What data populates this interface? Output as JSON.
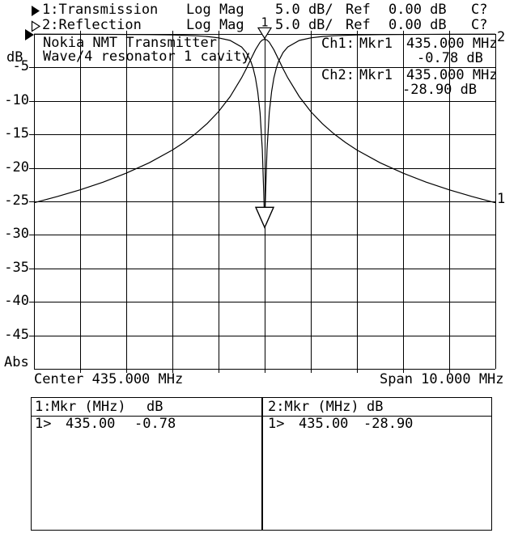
{
  "header": {
    "ch1": {
      "title": "1:Transmission",
      "format": "Log Mag",
      "scale": "5.0 dB/",
      "ref_label": "Ref",
      "ref_value": "0.00 dB",
      "cal_status": "C?",
      "marker_icon": "filled-right-triangle"
    },
    "ch2": {
      "title": "2:Reflection",
      "format": "Log Mag",
      "scale": "5.0 dB/",
      "ref_label": "Ref",
      "ref_value": "0.00 dB",
      "cal_status": "C?",
      "marker_icon": "hollow-right-triangle"
    }
  },
  "plot": {
    "annotation_line1": "Nokia NMT Transmitter",
    "annotation_line2": "Wave/4 resonator 1 cavity",
    "y_unit": "dB",
    "y_mode": "Abs",
    "y_tick_labels": [
      "-5",
      "-10",
      "-15",
      "-20",
      "-25",
      "-30",
      "-35",
      "-40",
      "-45"
    ],
    "center_label": "Center 435.000 MHz",
    "span_label": "Span 10.000 MHz",
    "trace1_label": "1",
    "trace2_label": "2"
  },
  "marker_readout": {
    "ch1": {
      "channel": "Ch1:",
      "marker": "Mkr1",
      "freq": "435.000 MHz",
      "value": "-0.78 dB"
    },
    "ch2": {
      "channel": "Ch2:",
      "marker": "Mkr1",
      "freq": "435.000 MHz",
      "value": "-28.90 dB"
    }
  },
  "marker_table": {
    "box1": {
      "header_name": "1:Mkr (MHz)",
      "header_unit": "dB",
      "row_num": "1>",
      "row_freq": "435.00",
      "row_value": "-0.78"
    },
    "box2": {
      "header_name": "2:Mkr (MHz)",
      "header_unit": "dB",
      "row_num": "1>",
      "row_freq": "435.00",
      "row_value": "-28.90"
    }
  },
  "chart_data": {
    "type": "line",
    "title": "Nokia NMT Transmitter Wave/4 resonator 1 cavity",
    "x_axis": {
      "center_mhz": 435.0,
      "span_mhz": 10.0,
      "start_mhz": 430.0,
      "stop_mhz": 440.0,
      "divisions": 10,
      "label": "Center 435.000 MHz / Span 10.000 MHz"
    },
    "y_axis": {
      "label": "dB",
      "ref_db": 0.0,
      "scale_db_per_div": 5.0,
      "max_db": 0.0,
      "min_db": -50.0,
      "divisions": 10,
      "mode": "Abs"
    },
    "grid": true,
    "series": [
      {
        "name": "Transmission",
        "channel": 1,
        "format": "Log Mag",
        "offsets_mhz": [
          -5,
          -4.5,
          -4,
          -3.5,
          -3,
          -2.5,
          -2,
          -1.75,
          -1.5,
          -1.25,
          -1,
          -0.75,
          -0.5,
          -0.4,
          -0.3,
          -0.2,
          -0.1,
          -0.05,
          0,
          0.05,
          0.1,
          0.2,
          0.3,
          0.4,
          0.5,
          0.75,
          1,
          1.25,
          1.5,
          1.75,
          2,
          2.5,
          3,
          3.5,
          4,
          4.5,
          5
        ],
        "values_db": [
          -25.2,
          -24.29,
          -23.27,
          -22.12,
          -20.79,
          -19.23,
          -17.33,
          -16.2,
          -14.9,
          -13.39,
          -11.59,
          -9.36,
          -6.53,
          -5.2,
          -3.78,
          -2.37,
          -1.23,
          -0.9,
          -0.78,
          -0.9,
          -1.23,
          -2.37,
          -3.78,
          -5.2,
          -6.53,
          -9.36,
          -11.59,
          -13.39,
          -14.9,
          -16.2,
          -17.33,
          -19.23,
          -20.79,
          -22.12,
          -23.27,
          -24.29,
          -25.2
        ]
      },
      {
        "name": "Reflection",
        "channel": 2,
        "format": "Log Mag",
        "offsets_mhz": [
          -5,
          -4,
          -3,
          -2.5,
          -2,
          -1.5,
          -1.25,
          -1,
          -0.75,
          -0.5,
          -0.4,
          -0.3,
          -0.25,
          -0.2,
          -0.15,
          -0.1,
          -0.05,
          -0.02,
          0,
          0.02,
          0.05,
          0.1,
          0.15,
          0.2,
          0.25,
          0.3,
          0.4,
          0.5,
          0.75,
          1,
          1.25,
          1.5,
          2,
          2.5,
          3,
          4,
          5
        ],
        "values_db": [
          -0.03,
          -0.04,
          -0.07,
          -0.1,
          -0.15,
          -0.27,
          -0.38,
          -0.58,
          -0.97,
          -1.95,
          -2.75,
          -4.1,
          -5.13,
          -6.55,
          -8.59,
          -11.73,
          -17.3,
          -23.87,
          -28.9,
          -23.87,
          -17.3,
          -11.73,
          -8.59,
          -6.55,
          -5.13,
          -4.1,
          -2.75,
          -1.95,
          -0.97,
          -0.58,
          -0.38,
          -0.27,
          -0.15,
          -0.1,
          -0.07,
          -0.04,
          -0.03
        ]
      }
    ],
    "markers": [
      {
        "channel": 1,
        "number": "1",
        "freq_mhz": 435.0,
        "value_db": -0.78
      },
      {
        "channel": 2,
        "number": "1",
        "freq_mhz": 435.0,
        "value_db": -28.9
      }
    ]
  },
  "colors": {
    "fg": "#000000",
    "bg": "#ffffff"
  }
}
